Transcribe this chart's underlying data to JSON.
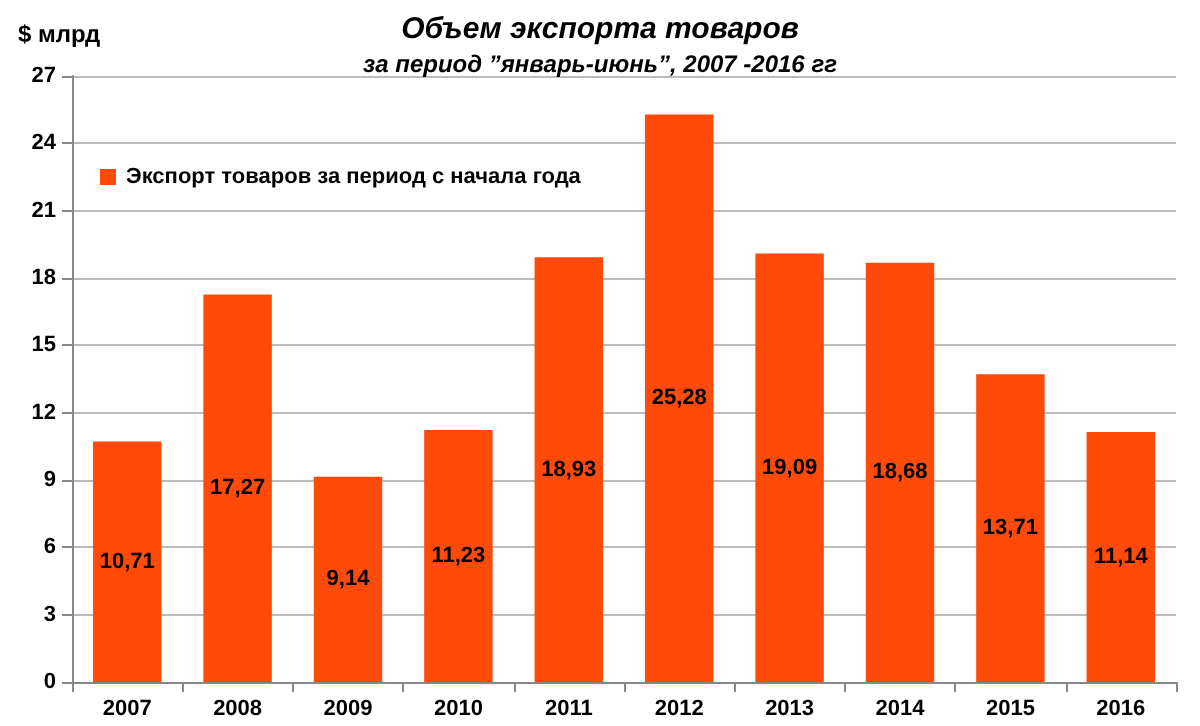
{
  "chart_data": {
    "type": "bar",
    "title": "Объем экспорта товаров",
    "subtitle": "за период ”январь-июнь”, 2007 -2016 гг",
    "ylabel": "$ млрд",
    "categories": [
      "2007",
      "2008",
      "2009",
      "2010",
      "2011",
      "2012",
      "2013",
      "2014",
      "2015",
      "2016"
    ],
    "series": [
      {
        "name": "Экспорт товаров за период с начала года",
        "color": "#ff4a0a",
        "values": [
          10.71,
          17.27,
          9.14,
          11.23,
          18.93,
          25.28,
          19.09,
          18.68,
          13.71,
          11.14
        ],
        "value_labels": [
          "10,71",
          "17,27",
          "9,14",
          "11,23",
          "18,93",
          "25,28",
          "19,09",
          "18,68",
          "13,71",
          "11,14"
        ]
      }
    ],
    "ylim": [
      0,
      27
    ],
    "yticks": [
      0,
      3,
      6,
      9,
      12,
      15,
      18,
      21,
      24,
      27
    ],
    "grid": "y",
    "legend": "top left"
  }
}
